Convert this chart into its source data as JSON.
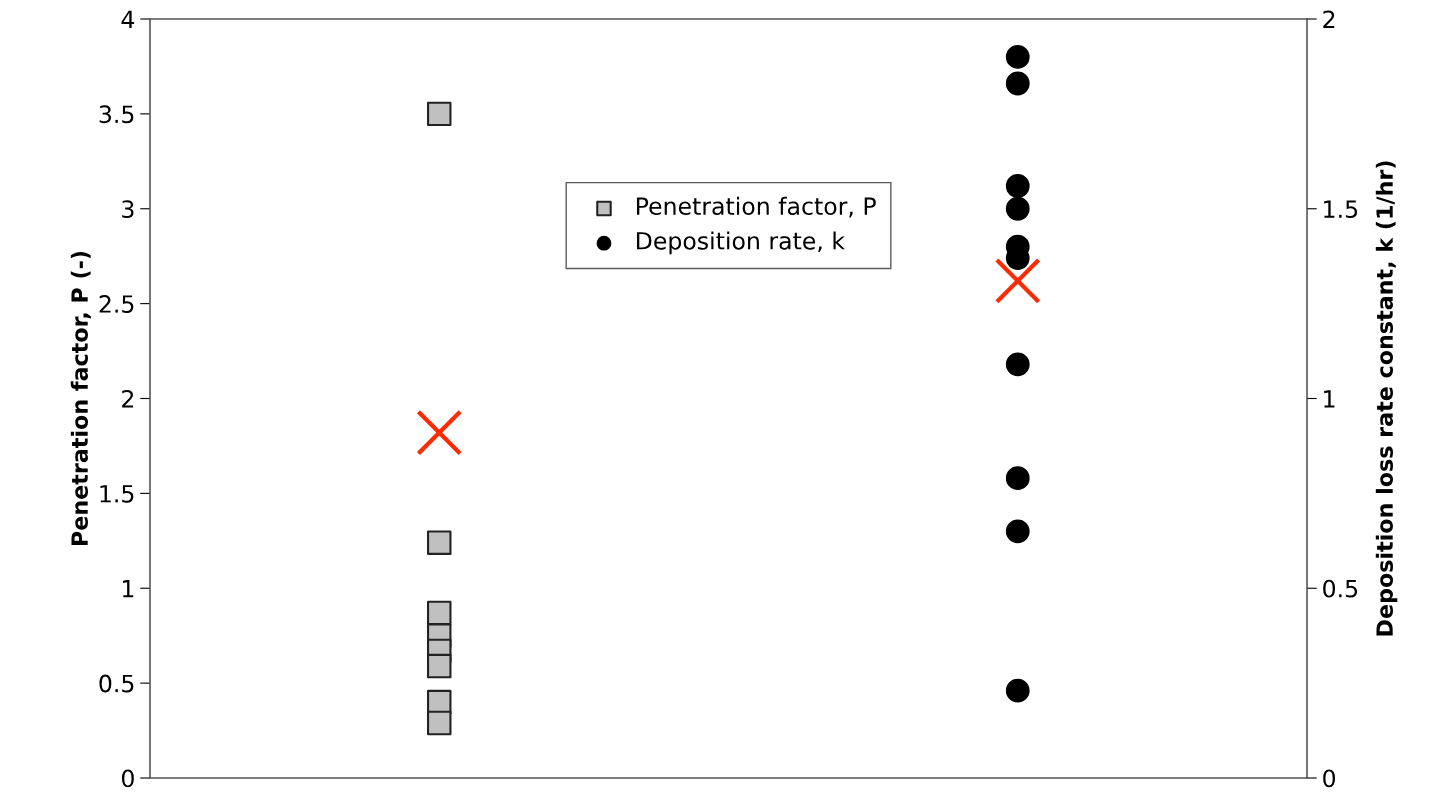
{
  "chart_data": {
    "type": "scatter",
    "ylabel": "Penetration factor, P (-)",
    "y2label": "Deposition loss rate constant, k (1/hr)",
    "categories": [
      null,
      null
    ],
    "ylim": [
      0,
      4
    ],
    "yticks": [
      0,
      0.5,
      1,
      1.5,
      2,
      2.5,
      3,
      3.5,
      4
    ],
    "y2lim": [
      0,
      2
    ],
    "y2ticks": [
      0,
      0.5,
      1,
      1.5,
      2
    ],
    "grid": false,
    "legend": "top",
    "series": [
      {
        "name": "Penetration factor, P",
        "color": "#c0c0c0",
        "marker": "square",
        "values": [
          3.5,
          null
        ]
      },
      {
        "color": "#c0c0c0",
        "marker": "square",
        "values": [
          1.24,
          null
        ]
      },
      {
        "color": "#c0c0c0",
        "marker": "square",
        "values": [
          0.87,
          null
        ]
      },
      {
        "color": "#c0c0c0",
        "marker": "square",
        "values": [
          0.75,
          null
        ]
      },
      {
        "color": "#c0c0c0",
        "marker": "square",
        "values": [
          0.67,
          null
        ]
      },
      {
        "color": "#c0c0c0",
        "marker": "square",
        "values": [
          0.59,
          null
        ]
      },
      {
        "color": "#c0c0c0",
        "marker": "square",
        "values": [
          0.4,
          null
        ]
      },
      {
        "color": "#c0c0c0",
        "marker": "square",
        "values": [
          0.29,
          null
        ]
      },
      {
        "name": "Deposition rate, k",
        "color": "#000000",
        "marker": "circle",
        "axis": "y2",
        "values": [
          null,
          1.9
        ]
      },
      {
        "color": "#000000",
        "marker": "circle",
        "axis": "y2",
        "values": [
          null,
          1.83
        ]
      },
      {
        "color": "#000000",
        "marker": "circle",
        "axis": "y2",
        "values": [
          null,
          1.56
        ]
      },
      {
        "color": "#000000",
        "marker": "circle",
        "axis": "y2",
        "values": [
          null,
          1.5
        ]
      },
      {
        "color": "#000000",
        "marker": "circle",
        "axis": "y2",
        "values": [
          null,
          1.4
        ]
      },
      {
        "color": "#000000",
        "marker": "circle",
        "axis": "y2",
        "values": [
          null,
          1.37
        ]
      },
      {
        "color": "#000000",
        "marker": "circle",
        "axis": "y2",
        "values": [
          null,
          1.09
        ]
      },
      {
        "color": "#000000",
        "marker": "circle",
        "axis": "y2",
        "values": [
          null,
          0.79
        ]
      },
      {
        "color": "#000000",
        "marker": "circle",
        "axis": "y2",
        "values": [
          null,
          0.65
        ]
      },
      {
        "color": "#000000",
        "marker": "circle",
        "axis": "y2",
        "values": [
          null,
          0.23
        ]
      },
      {
        "color": "#ff2a00",
        "marker": "cross",
        "values": [
          1.82,
          null
        ]
      },
      {
        "color": "#ff2a00",
        "marker": "cross",
        "axis": "y2",
        "values": [
          null,
          1.31
        ]
      }
    ]
  }
}
